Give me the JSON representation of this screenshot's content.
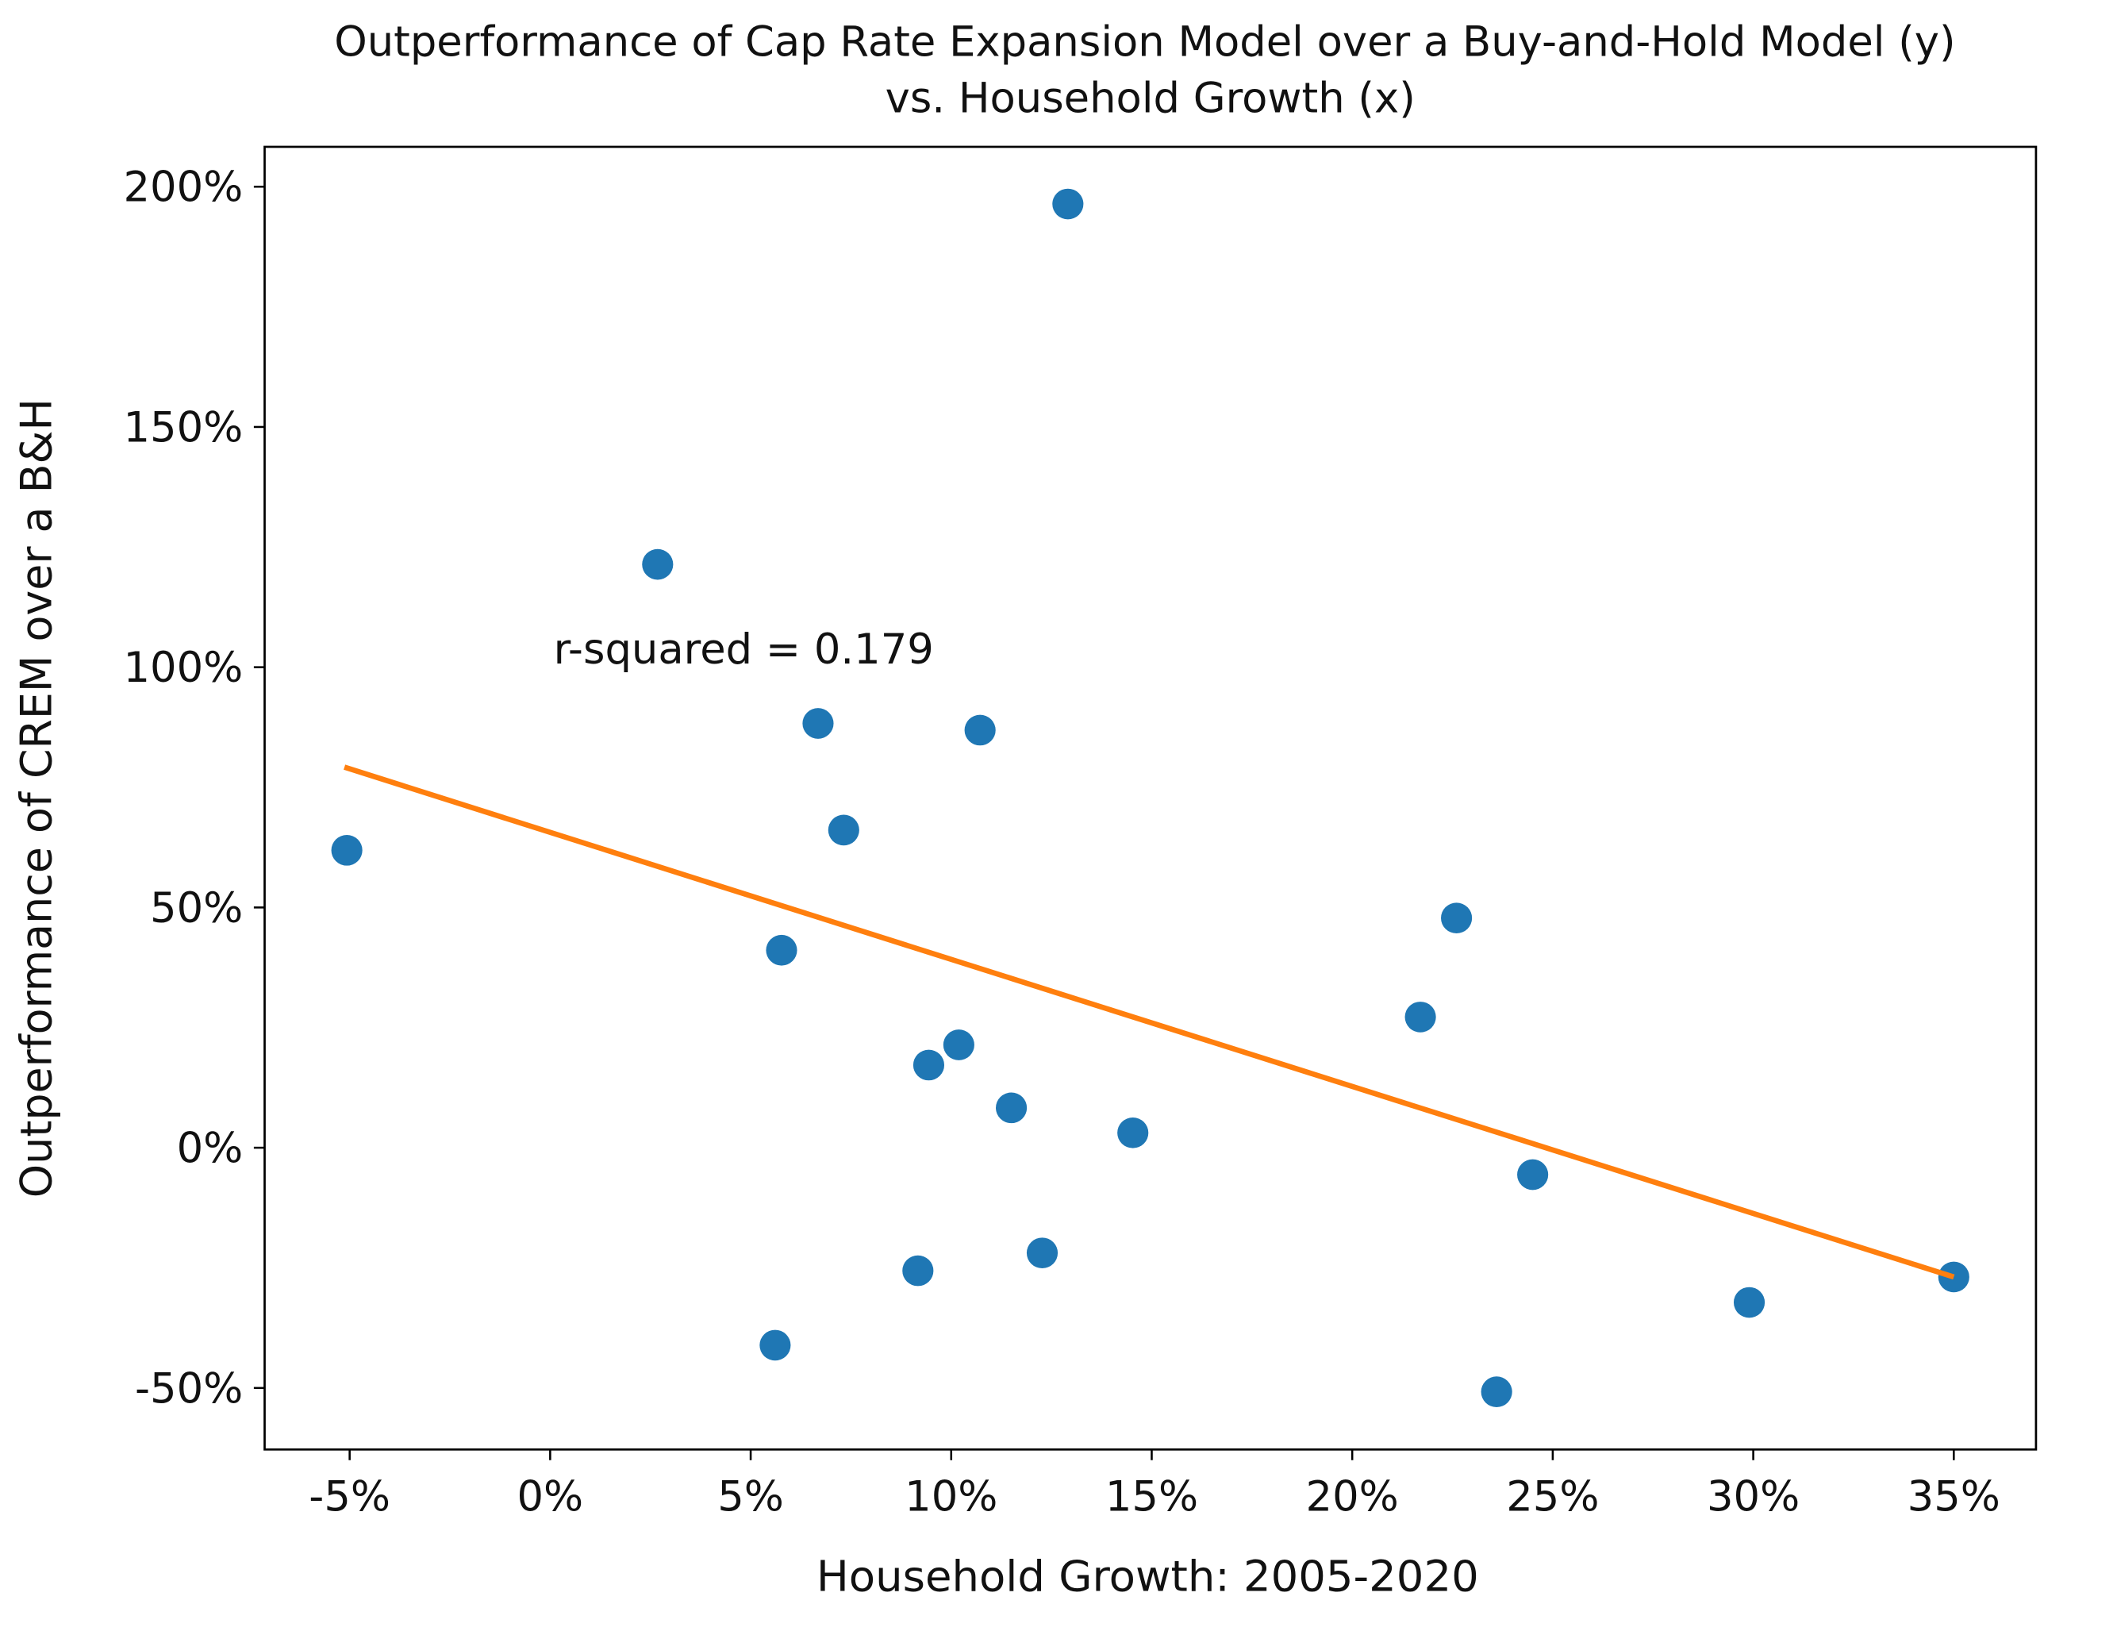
{
  "chart_data": {
    "type": "scatter",
    "title": "Outperformance of Cap Rate Expansion Model over a Buy-and-Hold Model (y)",
    "subtitle": "vs. Household Growth (x)",
    "x_label": "Household Growth: 2005-2020",
    "y_label": "Outperformance of CREM over a B&H",
    "annotation": "r-squared = 0.179",
    "xlim": [
      -7.12,
      37.05
    ],
    "ylim": [
      -62.8,
      208.3
    ],
    "xticks": [
      {
        "value": -5,
        "label": "-5%"
      },
      {
        "value": 0,
        "label": "0%"
      },
      {
        "value": 5,
        "label": "5%"
      },
      {
        "value": 10,
        "label": "10%"
      },
      {
        "value": 15,
        "label": "15%"
      },
      {
        "value": 20,
        "label": "20%"
      },
      {
        "value": 25,
        "label": "25%"
      },
      {
        "value": 30,
        "label": "30%"
      },
      {
        "value": 35,
        "label": "35%"
      }
    ],
    "yticks": [
      {
        "value": -50,
        "label": "-50%"
      },
      {
        "value": 0,
        "label": "0%"
      },
      {
        "value": 50,
        "label": "50%"
      },
      {
        "value": 100,
        "label": "100%"
      },
      {
        "value": 150,
        "label": "150%"
      },
      {
        "value": 200,
        "label": "200%"
      }
    ],
    "grid": false,
    "series": [
      {
        "type": "scatter",
        "color": "#1f77b4",
        "x": [
          -5.07,
          2.68,
          12.91,
          6.68,
          10.72,
          7.32,
          5.77,
          9.44,
          10.19,
          11.5,
          14.53,
          9.17,
          12.27,
          5.61,
          21.7,
          22.6,
          24.5,
          23.6,
          29.9,
          35.0
        ],
        "values": [
          61.9,
          121.4,
          196.4,
          88.3,
          86.9,
          66.1,
          41.1,
          17.2,
          21.4,
          8.3,
          3.1,
          -25.6,
          -21.9,
          -41.1,
          27.2,
          47.8,
          -5.6,
          -50.8,
          -32.2,
          -26.9
        ]
      },
      {
        "type": "line",
        "color": "#ff7f0e",
        "x": [
          -5.13,
          35.0
        ],
        "values": [
          79.2,
          -26.9
        ]
      }
    ]
  }
}
